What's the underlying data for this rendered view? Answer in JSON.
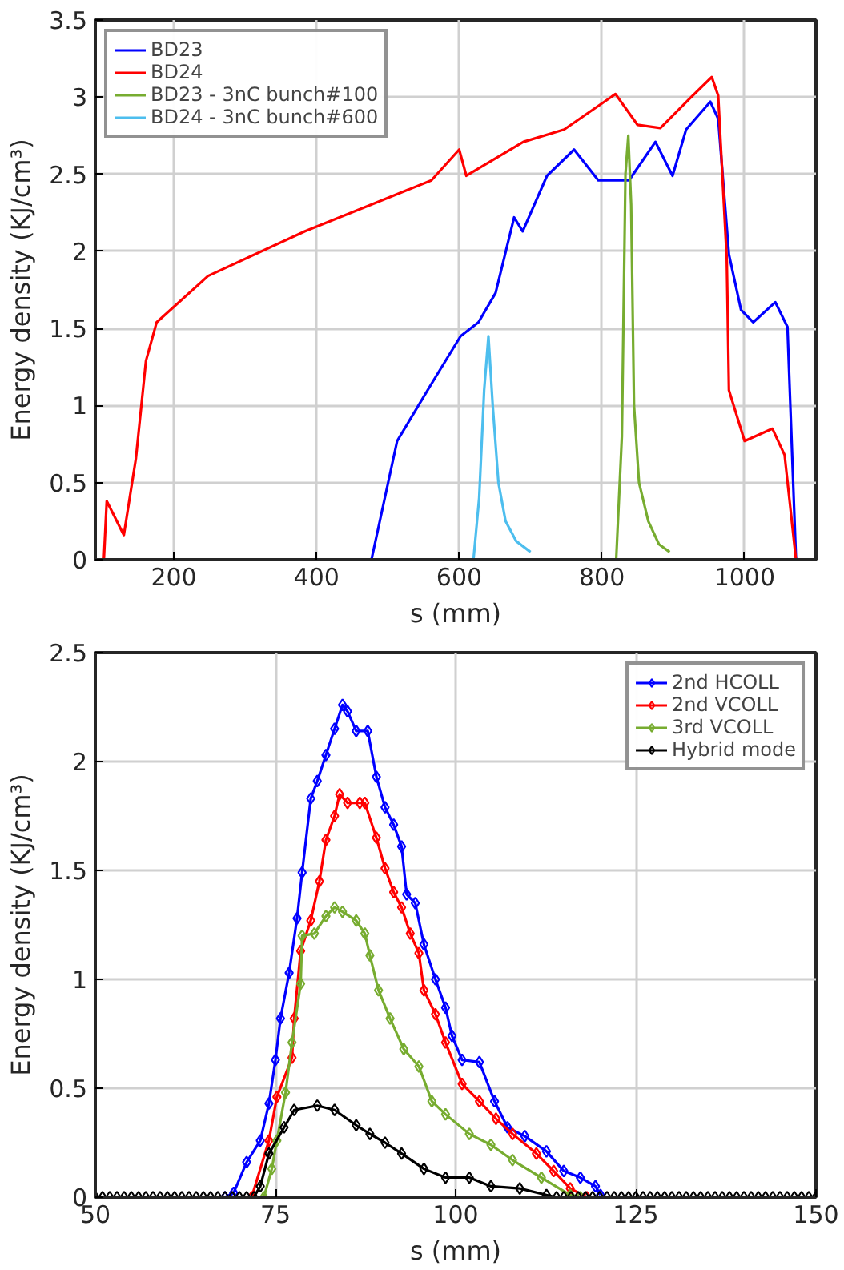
{
  "chart_data": [
    {
      "type": "line",
      "xlabel": "s (mm)",
      "ylabel": "Energy density (KJ/cm³)",
      "xlim": [
        90,
        1100
      ],
      "ylim": [
        0,
        3.5
      ],
      "xticks": [
        200,
        400,
        600,
        800,
        1000
      ],
      "yticks": [
        0,
        0.5,
        1,
        1.5,
        2,
        2.5,
        3,
        3.5
      ],
      "grid": true,
      "legend": "top left",
      "marker": "none",
      "line_style": "solid",
      "series": [
        {
          "name": "BD23",
          "color": "#0000ff",
          "x": [
            90,
            477,
            513,
            561,
            602,
            627,
            651,
            677,
            689,
            723,
            761,
            795,
            838,
            875,
            899,
            918,
            952,
            963,
            978,
            995,
            1012,
            1043,
            1060,
            1072,
            1085
          ],
          "values": [
            0,
            0,
            0.77,
            1.14,
            1.45,
            1.54,
            1.73,
            2.22,
            2.13,
            2.49,
            2.66,
            2.46,
            2.46,
            2.71,
            2.49,
            2.79,
            2.97,
            2.86,
            1.98,
            1.62,
            1.54,
            1.67,
            1.51,
            0,
            0
          ]
        },
        {
          "name": "BD24",
          "color": "#ff0000",
          "x": [
            90,
            102,
            106,
            130,
            147,
            161,
            176,
            248,
            384,
            561,
            600,
            610,
            690,
            747,
            819,
            850,
            882,
            923,
            954,
            963,
            975,
            978,
            1000,
            1039,
            1056,
            1072,
            1085
          ],
          "values": [
            0,
            0,
            0.38,
            0.16,
            0.66,
            1.29,
            1.54,
            1.84,
            2.13,
            2.46,
            2.66,
            2.49,
            2.71,
            2.79,
            3.02,
            2.82,
            2.8,
            2.99,
            3.13,
            3.01,
            1.95,
            1.1,
            0.77,
            0.85,
            0.68,
            0,
            0
          ]
        },
        {
          "name": "BD23 - 3nC bunch#100",
          "color": "#77ac30",
          "x": [
            620,
            820,
            828,
            833,
            837,
            841,
            845,
            852,
            865,
            880,
            895
          ],
          "values": [
            0,
            0,
            0.8,
            2.5,
            2.75,
            2.3,
            1.0,
            0.5,
            0.25,
            0.1,
            0.05
          ]
        },
        {
          "name": "BD24 - 3nC bunch#600",
          "color": "#4dbeee",
          "x": [
            90,
            620,
            628,
            635,
            641,
            647,
            655,
            665,
            680,
            700
          ],
          "values": [
            0,
            0,
            0.4,
            1.1,
            1.45,
            1.0,
            0.5,
            0.25,
            0.12,
            0.05
          ]
        }
      ]
    },
    {
      "type": "line",
      "xlabel": "s (mm)",
      "ylabel": "Energy density (KJ/cm³)",
      "xlim": [
        50,
        150
      ],
      "ylim": [
        0,
        2.5
      ],
      "xticks": [
        50,
        75,
        100,
        125,
        150
      ],
      "yticks": [
        0,
        0.5,
        1,
        1.5,
        2,
        2.5
      ],
      "grid": true,
      "legend": "top right",
      "marker": "diamond",
      "line_style": "solid",
      "series": [
        {
          "name": "2nd HCOLL",
          "color": "#0000ff",
          "x": [
            68,
            69.2,
            71.0,
            72.9,
            74.1,
            75.0,
            75.7,
            76.9,
            78.0,
            78.7,
            79.9,
            80.8,
            82.0,
            83.2,
            84.3,
            85.0,
            86.2,
            87.8,
            89.0,
            90.2,
            91.4,
            92.5,
            93.2,
            94.4,
            95.6,
            97.2,
            98.6,
            99.5,
            100.9,
            103.3,
            105.4,
            107.2,
            109.6,
            112.6,
            115.0,
            117.3,
            119.4,
            120.1
          ],
          "values": [
            0,
            0.02,
            0.16,
            0.26,
            0.43,
            0.63,
            0.82,
            1.03,
            1.28,
            1.49,
            1.83,
            1.91,
            2.03,
            2.15,
            2.26,
            2.23,
            2.14,
            2.14,
            1.93,
            1.79,
            1.71,
            1.61,
            1.39,
            1.35,
            1.16,
            1.0,
            0.87,
            0.74,
            0.63,
            0.62,
            0.44,
            0.32,
            0.28,
            0.21,
            0.12,
            0.09,
            0.05,
            0.01
          ]
        },
        {
          "name": "2nd VCOLL",
          "color": "#ff0000",
          "x": [
            71.7,
            74.1,
            75.2,
            77.3,
            77.6,
            78.5,
            79.9,
            81.1,
            82.0,
            83.2,
            83.9,
            85.0,
            86.7,
            87.4,
            89.0,
            90.2,
            91.4,
            92.5,
            93.7,
            94.9,
            95.6,
            97.2,
            98.6,
            100.9,
            103.3,
            105.6,
            107.9,
            111.2,
            113.6,
            115.9,
            118.2
          ],
          "values": [
            0,
            0.26,
            0.46,
            0.64,
            0.82,
            1.13,
            1.27,
            1.45,
            1.64,
            1.75,
            1.85,
            1.81,
            1.81,
            1.81,
            1.65,
            1.51,
            1.4,
            1.33,
            1.21,
            1.12,
            0.95,
            0.84,
            0.71,
            0.52,
            0.44,
            0.36,
            0.29,
            0.2,
            0.12,
            0.04,
            0
          ]
        },
        {
          "name": "3rd VCOLL",
          "color": "#77ac30",
          "x": [
            73.4,
            74.5,
            75.2,
            76.4,
            77.3,
            78.5,
            78.7,
            80.4,
            82.0,
            83.2,
            84.3,
            86.2,
            87.4,
            88.1,
            89.3,
            90.9,
            92.8,
            94.9,
            96.7,
            98.6,
            101.9,
            104.9,
            107.9,
            111.9,
            115.9,
            117.3
          ],
          "values": [
            0,
            0.13,
            0.26,
            0.48,
            0.71,
            0.98,
            1.2,
            1.21,
            1.29,
            1.33,
            1.31,
            1.27,
            1.21,
            1.11,
            0.95,
            0.82,
            0.68,
            0.6,
            0.44,
            0.38,
            0.29,
            0.24,
            0.17,
            0.09,
            0.01,
            0
          ]
        },
        {
          "name": "Hybrid mode",
          "color": "#000000",
          "x": [
            50,
            51,
            52,
            53,
            54,
            55,
            56,
            57,
            58,
            59,
            60,
            61,
            62,
            63,
            64,
            65,
            66,
            67,
            68,
            69,
            70,
            71,
            72,
            72.9,
            74.1,
            76.2,
            77.6,
            80.8,
            83.2,
            86.2,
            88.1,
            90.2,
            92.5,
            95.6,
            98.6,
            101.9,
            104.9,
            108.9,
            112.6,
            114,
            115,
            116,
            117,
            118,
            119,
            120,
            121,
            122,
            123,
            124,
            125,
            126,
            127,
            128,
            129,
            130,
            131,
            132,
            133,
            134,
            135,
            136,
            137,
            138,
            139,
            140,
            141,
            142,
            143,
            144,
            145,
            146,
            147,
            148,
            149,
            150
          ],
          "values": [
            0,
            0,
            0,
            0,
            0,
            0,
            0,
            0,
            0,
            0,
            0,
            0,
            0,
            0,
            0,
            0,
            0,
            0,
            0,
            0,
            0,
            0,
            0,
            0.05,
            0.2,
            0.32,
            0.4,
            0.42,
            0.4,
            0.33,
            0.29,
            0.25,
            0.2,
            0.13,
            0.09,
            0.09,
            0.05,
            0.04,
            0.01,
            0,
            0,
            0,
            0,
            0,
            0,
            0,
            0,
            0,
            0,
            0,
            0,
            0,
            0,
            0,
            0,
            0,
            0,
            0,
            0,
            0,
            0,
            0,
            0,
            0,
            0,
            0,
            0,
            0,
            0,
            0,
            0,
            0,
            0,
            0,
            0,
            0
          ]
        }
      ]
    }
  ]
}
